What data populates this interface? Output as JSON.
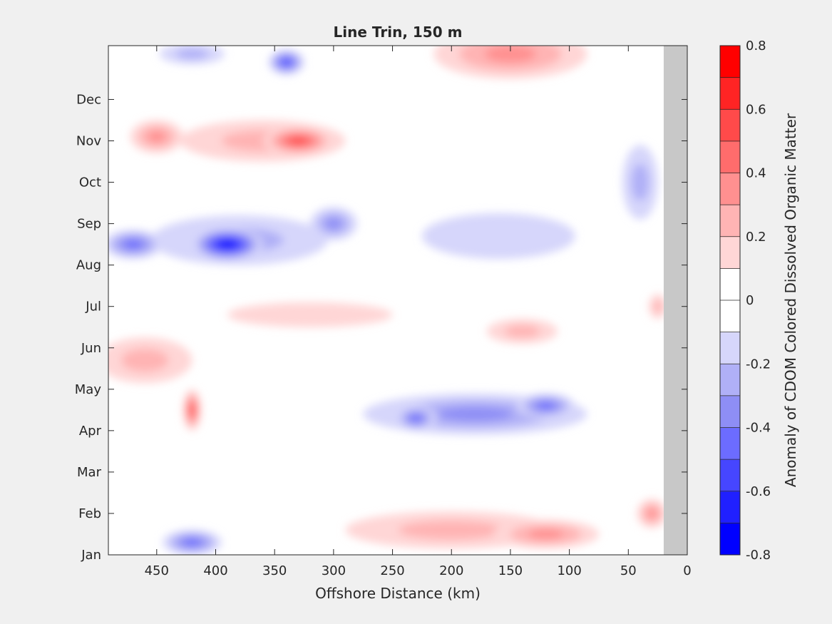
{
  "chart_data": {
    "type": "heatmap",
    "title": "Line Trin, 150 m",
    "xlabel": "Offshore Distance (km)",
    "ylabel": "",
    "xlim": [
      491,
      0
    ],
    "x_reversed": true,
    "x_ticks": [
      450,
      400,
      350,
      300,
      250,
      200,
      150,
      100,
      50,
      0
    ],
    "x_tick_labels": [
      "450",
      "400",
      "350",
      "300",
      "250",
      "200",
      "150",
      "100",
      "50",
      "0"
    ],
    "ylim": [
      0.5,
      12.8
    ],
    "y_ticks": [
      0.5,
      1.5,
      2.5,
      3.5,
      4.5,
      5.5,
      6.5,
      7.5,
      8.5,
      9.5,
      10.5,
      11.5
    ],
    "y_tick_labels": [
      "Jan",
      "Feb",
      "Mar",
      "Apr",
      "May",
      "Jun",
      "Jul",
      "Aug",
      "Sep",
      "Oct",
      "Nov",
      "Dec"
    ],
    "no_data_region_km": [
      0,
      20
    ],
    "no_data_color": "#c8c8c8",
    "colorbar": {
      "label": "Anomaly of CDOM Colored Dissolved Organic Matter",
      "clim": [
        -0.8,
        0.8
      ],
      "ticks": [
        0.8,
        0.6,
        0.4,
        0.2,
        0,
        -0.2,
        -0.4,
        -0.6,
        -0.8
      ],
      "tick_labels": [
        "0.8",
        "0.6",
        "0.4",
        "0.2",
        "0",
        "-0.2",
        "-0.4",
        "-0.6",
        "-0.8"
      ],
      "levels": [
        -0.8,
        -0.7,
        -0.6,
        -0.5,
        -0.4,
        -0.3,
        -0.2,
        -0.1,
        0,
        0.1,
        0.2,
        0.3,
        0.4,
        0.5,
        0.6,
        0.7,
        0.8
      ],
      "colors": [
        "#0000ff",
        "#2020ff",
        "#4646ff",
        "#6c6cff",
        "#8e8ef5",
        "#b0b0f7",
        "#d6d6fb",
        "#ffffff",
        "#ffffff",
        "#ffd6d6",
        "#ffb4b4",
        "#ff9090",
        "#ff6c6c",
        "#ff4a4a",
        "#ff2424",
        "#ff0000"
      ]
    },
    "anomaly_features": [
      {
        "x": 330,
        "y": 10.5,
        "value": 0.55,
        "wx": 60,
        "wy": 0.7
      },
      {
        "x": 450,
        "y": 10.6,
        "value": 0.3,
        "wx": 45,
        "wy": 0.8
      },
      {
        "x": 360,
        "y": 10.5,
        "value": 0.25,
        "wx": 140,
        "wy": 1.0
      },
      {
        "x": 390,
        "y": 8.0,
        "value": -0.7,
        "wx": 60,
        "wy": 0.8
      },
      {
        "x": 470,
        "y": 8.0,
        "value": -0.45,
        "wx": 50,
        "wy": 0.7
      },
      {
        "x": 300,
        "y": 8.5,
        "value": -0.3,
        "wx": 40,
        "wy": 0.8
      },
      {
        "x": 380,
        "y": 8.1,
        "value": -0.25,
        "wx": 150,
        "wy": 1.2
      },
      {
        "x": 160,
        "y": 8.2,
        "value": -0.15,
        "wx": 130,
        "wy": 1.1
      },
      {
        "x": 340,
        "y": 12.4,
        "value": -0.55,
        "wx": 30,
        "wy": 0.6
      },
      {
        "x": 420,
        "y": 12.6,
        "value": -0.25,
        "wx": 55,
        "wy": 0.5
      },
      {
        "x": 420,
        "y": 4.0,
        "value": 0.5,
        "wx": 15,
        "wy": 1.0
      },
      {
        "x": 460,
        "y": 5.2,
        "value": 0.25,
        "wx": 80,
        "wy": 1.1
      },
      {
        "x": 320,
        "y": 6.3,
        "value": 0.15,
        "wx": 140,
        "wy": 0.6
      },
      {
        "x": 140,
        "y": 5.9,
        "value": 0.2,
        "wx": 60,
        "wy": 0.6
      },
      {
        "x": 230,
        "y": 3.8,
        "value": -0.45,
        "wx": 35,
        "wy": 0.6
      },
      {
        "x": 120,
        "y": 4.1,
        "value": -0.45,
        "wx": 50,
        "wy": 0.6
      },
      {
        "x": 180,
        "y": 3.9,
        "value": -0.3,
        "wx": 190,
        "wy": 1.0
      },
      {
        "x": 120,
        "y": 1.0,
        "value": 0.35,
        "wx": 90,
        "wy": 0.7
      },
      {
        "x": 200,
        "y": 1.1,
        "value": 0.2,
        "wx": 180,
        "wy": 0.9
      },
      {
        "x": 30,
        "y": 1.5,
        "value": 0.3,
        "wx": 25,
        "wy": 0.7
      },
      {
        "x": 420,
        "y": 0.8,
        "value": -0.45,
        "wx": 50,
        "wy": 0.6
      },
      {
        "x": 150,
        "y": 12.6,
        "value": 0.3,
        "wx": 130,
        "wy": 1.2
      },
      {
        "x": 40,
        "y": 9.5,
        "value": -0.2,
        "wx": 30,
        "wy": 1.8
      },
      {
        "x": 25,
        "y": 6.5,
        "value": 0.25,
        "wx": 15,
        "wy": 0.6
      }
    ]
  }
}
